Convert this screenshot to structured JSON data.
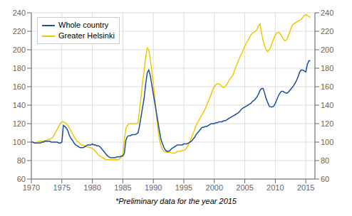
{
  "chart_data": {
    "type": "line",
    "x": [
      1970,
      1970.25,
      1970.5,
      1970.75,
      1971,
      1971.25,
      1971.5,
      1971.75,
      1972,
      1972.25,
      1972.5,
      1972.75,
      1973,
      1973.25,
      1973.5,
      1973.75,
      1974,
      1974.25,
      1974.5,
      1974.75,
      1975,
      1975.25,
      1975.5,
      1975.75,
      1976,
      1976.25,
      1976.5,
      1976.75,
      1977,
      1977.25,
      1977.5,
      1977.75,
      1978,
      1978.25,
      1978.5,
      1978.75,
      1979,
      1979.25,
      1979.5,
      1979.75,
      1980,
      1980.25,
      1980.5,
      1980.75,
      1981,
      1981.25,
      1981.5,
      1981.75,
      1982,
      1982.25,
      1982.5,
      1982.75,
      1983,
      1983.25,
      1983.5,
      1983.75,
      1984,
      1984.25,
      1984.5,
      1984.75,
      1985,
      1985.25,
      1985.5,
      1985.75,
      1986,
      1986.25,
      1986.5,
      1986.75,
      1987,
      1987.25,
      1987.5,
      1987.75,
      1988,
      1988.25,
      1988.5,
      1988.75,
      1989,
      1989.25,
      1989.5,
      1989.75,
      1990,
      1990.25,
      1990.5,
      1990.75,
      1991,
      1991.25,
      1991.5,
      1991.75,
      1992,
      1992.25,
      1992.5,
      1992.75,
      1993,
      1993.25,
      1993.5,
      1993.75,
      1994,
      1994.25,
      1994.5,
      1994.75,
      1995,
      1995.25,
      1995.5,
      1995.75,
      1996,
      1996.25,
      1996.5,
      1996.75,
      1997,
      1997.25,
      1997.5,
      1997.75,
      1998,
      1998.25,
      1998.5,
      1998.75,
      1999,
      1999.25,
      1999.5,
      1999.75,
      2000,
      2000.25,
      2000.5,
      2000.75,
      2001,
      2001.25,
      2001.5,
      2001.75,
      2002,
      2002.25,
      2002.5,
      2002.75,
      2003,
      2003.25,
      2003.5,
      2003.75,
      2004,
      2004.25,
      2004.5,
      2004.75,
      2005,
      2005.25,
      2005.5,
      2005.75,
      2006,
      2006.25,
      2006.5,
      2006.75,
      2007,
      2007.25,
      2007.5,
      2007.75,
      2008,
      2008.25,
      2008.5,
      2008.75,
      2009,
      2009.25,
      2009.5,
      2009.75,
      2010,
      2010.25,
      2010.5,
      2010.75,
      2011,
      2011.25,
      2011.5,
      2011.75,
      2012,
      2012.25,
      2012.5,
      2012.75,
      2013,
      2013.25,
      2013.5,
      2013.75,
      2014,
      2014.25,
      2014.5,
      2014.75,
      2015,
      2015.25,
      2015.5,
      2015.75
    ],
    "series": [
      {
        "name": "Whole country",
        "color": "#1a4f9c",
        "values": [
          100,
          100,
          99,
          99,
          99,
          99,
          99,
          100,
          100,
          101,
          101,
          101,
          101,
          100,
          100,
          100,
          100,
          100,
          99,
          99,
          100,
          118,
          117,
          115,
          112,
          107,
          104,
          102,
          99,
          97,
          96,
          95,
          94,
          94,
          94,
          95,
          96,
          97,
          97,
          97,
          98,
          97,
          97,
          96,
          96,
          95,
          93,
          91,
          89,
          87,
          85,
          84,
          83,
          83,
          83,
          83,
          84,
          84,
          84,
          85,
          85,
          88,
          102,
          106,
          107,
          107,
          108,
          108,
          108,
          109,
          110,
          118,
          128,
          138,
          148,
          163,
          175,
          178,
          172,
          162,
          152,
          142,
          132,
          122,
          112,
          103,
          98,
          94,
          91,
          90,
          90,
          91,
          93,
          94,
          95,
          96,
          97,
          97,
          97,
          97,
          98,
          98,
          98,
          99,
          100,
          101,
          103,
          105,
          108,
          110,
          112,
          114,
          116,
          116,
          117,
          117,
          118,
          119,
          120,
          120,
          120,
          121,
          121,
          122,
          122,
          122,
          123,
          123,
          124,
          125,
          126,
          127,
          128,
          129,
          130,
          131,
          132,
          134,
          136,
          137,
          138,
          139,
          140,
          141,
          142,
          144,
          145,
          147,
          149,
          152,
          156,
          158,
          158,
          153,
          147,
          143,
          139,
          138,
          138,
          139,
          142,
          146,
          150,
          153,
          155,
          155,
          154,
          153,
          153,
          155,
          157,
          159,
          161,
          164,
          167,
          171,
          176,
          178,
          178,
          177,
          176,
          184,
          188,
          188
        ]
      },
      {
        "name": "Greater Helsinki",
        "color": "#f0c800",
        "values": [
          100,
          100,
          99,
          99,
          100,
          101,
          101,
          101,
          101,
          102,
          102,
          103,
          103,
          104,
          105,
          108,
          111,
          114,
          117,
          120,
          122,
          122,
          121,
          120,
          118,
          115,
          112,
          109,
          106,
          103,
          101,
          100,
          98,
          97,
          97,
          96,
          95,
          95,
          94,
          94,
          93,
          92,
          90,
          88,
          86,
          85,
          84,
          83,
          82,
          81,
          81,
          81,
          81,
          81,
          81,
          81,
          81,
          81,
          82,
          84,
          86,
          102,
          115,
          118,
          120,
          120,
          120,
          120,
          120,
          120,
          121,
          135,
          150,
          165,
          178,
          192,
          202,
          200,
          190,
          177,
          163,
          148,
          130,
          115,
          103,
          96,
          92,
          90,
          89,
          89,
          89,
          89,
          88,
          88,
          88,
          89,
          90,
          90,
          90,
          91,
          91,
          92,
          94,
          97,
          101,
          105,
          109,
          113,
          118,
          121,
          124,
          127,
          130,
          133,
          136,
          140,
          144,
          148,
          152,
          157,
          160,
          162,
          163,
          163,
          162,
          160,
          159,
          160,
          162,
          165,
          168,
          170,
          172,
          176,
          181,
          185,
          189,
          193,
          196,
          200,
          204,
          207,
          210,
          213,
          216,
          218,
          219,
          220,
          222,
          226,
          228,
          218,
          210,
          204,
          200,
          198,
          200,
          203,
          208,
          212,
          216,
          218,
          219,
          218,
          215,
          212,
          210,
          210,
          213,
          217,
          222,
          226,
          228,
          229,
          230,
          231,
          232,
          233,
          235,
          237,
          238,
          237,
          236,
          235
        ]
      }
    ],
    "xlim": [
      1970,
      2016.5
    ],
    "xticks": [
      1970,
      1975,
      1980,
      1985,
      1990,
      1995,
      2000,
      2005,
      2010,
      2015
    ],
    "ylim": [
      60,
      240
    ],
    "yticks": [
      60,
      80,
      100,
      120,
      140,
      160,
      180,
      200,
      220,
      240
    ],
    "grid": true,
    "legend": "upper left",
    "annotations": [
      "*Preliminary data for the year 2015"
    ]
  }
}
